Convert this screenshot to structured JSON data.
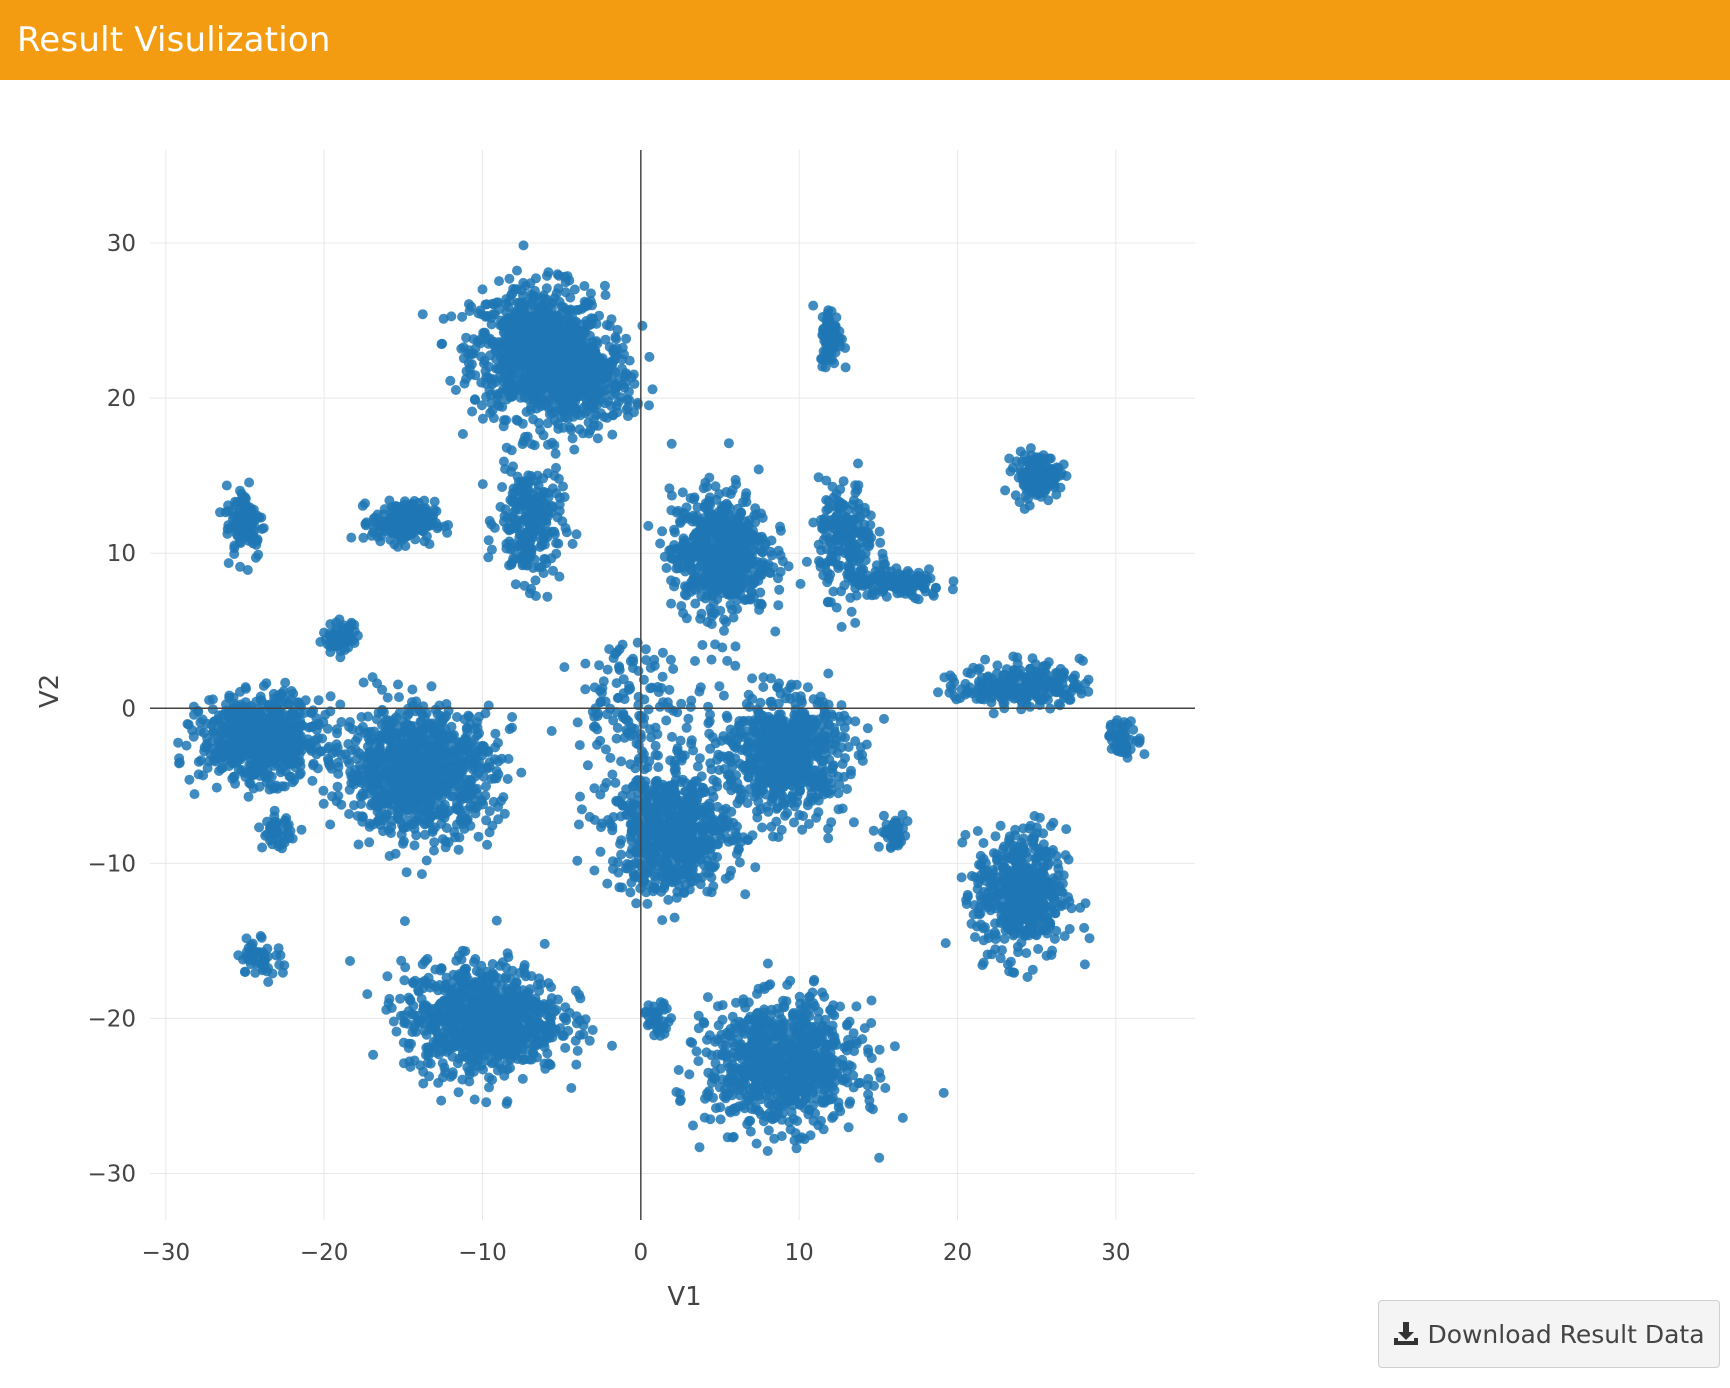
{
  "header": {
    "title": "Result Visulization"
  },
  "download_button": {
    "label": "Download Result Data",
    "icon": "download-icon"
  },
  "colors": {
    "header": "#f39c12",
    "points": "#1f77b4",
    "grid": "#e8e8e8",
    "zeroline": "#444444"
  },
  "chart_data": {
    "type": "scatter",
    "title": "",
    "xlabel": "V1",
    "ylabel": "V2",
    "xlim": [
      -31,
      35
    ],
    "ylim": [
      -33,
      36
    ],
    "xticks": [
      -30,
      -20,
      -10,
      0,
      10,
      20,
      30
    ],
    "yticks": [
      -30,
      -20,
      -10,
      0,
      10,
      20,
      30
    ],
    "xtick_labels": [
      "−30",
      "−20",
      "−10",
      "0",
      "10",
      "20",
      "30"
    ],
    "ytick_labels": [
      "−30",
      "−20",
      "−10",
      "0",
      "10",
      "20",
      "30"
    ],
    "grid": true,
    "zerolines": true,
    "legend": "none",
    "series": [
      {
        "color": "#1f77b4",
        "clusters": [
          {
            "center": [
              -6.5,
              23
            ],
            "spread": [
              3.8,
              3.8
            ],
            "approx_points": 900
          },
          {
            "center": [
              -3.5,
              21
            ],
            "spread": [
              2.8,
              2.5
            ],
            "approx_points": 300
          },
          {
            "center": [
              -7,
              12
            ],
            "spread": [
              1.8,
              3.5
            ],
            "approx_points": 250
          },
          {
            "center": [
              -15,
              12
            ],
            "spread": [
              1.8,
              1.2
            ],
            "approx_points": 220
          },
          {
            "center": [
              -25,
              12
            ],
            "spread": [
              1.1,
              2.2
            ],
            "approx_points": 100
          },
          {
            "center": [
              12,
              24
            ],
            "spread": [
              0.6,
              1.7
            ],
            "approx_points": 90
          },
          {
            "center": [
              25,
              15
            ],
            "spread": [
              1.3,
              1.3
            ],
            "approx_points": 150
          },
          {
            "center": [
              5,
              10
            ],
            "spread": [
              2.8,
              3.6
            ],
            "approx_points": 600
          },
          {
            "center": [
              13,
              11
            ],
            "spread": [
              1.6,
              3.2
            ],
            "approx_points": 200
          },
          {
            "center": [
              16,
              8
            ],
            "spread": [
              3.0,
              0.9
            ],
            "approx_points": 150
          },
          {
            "center": [
              -24,
              -2
            ],
            "spread": [
              3.4,
              2.4
            ],
            "approx_points": 700
          },
          {
            "center": [
              -14,
              -4
            ],
            "spread": [
              4.3,
              3.6
            ],
            "approx_points": 1000
          },
          {
            "center": [
              -19,
              4.5
            ],
            "spread": [
              1.0,
              0.9
            ],
            "approx_points": 60
          },
          {
            "center": [
              -23,
              -8
            ],
            "spread": [
              0.8,
              0.9
            ],
            "approx_points": 50
          },
          {
            "center": [
              2,
              -8
            ],
            "spread": [
              3.5,
              3.5
            ],
            "approx_points": 700
          },
          {
            "center": [
              9,
              -3
            ],
            "spread": [
              3.5,
              3.5
            ],
            "approx_points": 700
          },
          {
            "center": [
              24,
              1.5
            ],
            "spread": [
              3.5,
              1.3
            ],
            "approx_points": 250
          },
          {
            "center": [
              30.5,
              -2
            ],
            "spread": [
              1.0,
              1.0
            ],
            "approx_points": 60
          },
          {
            "center": [
              16,
              -8
            ],
            "spread": [
              0.8,
              1.0
            ],
            "approx_points": 50
          },
          {
            "center": [
              24,
              -12
            ],
            "spread": [
              2.6,
              3.8
            ],
            "approx_points": 500
          },
          {
            "center": [
              -10,
              -20
            ],
            "spread": [
              4.5,
              3.2
            ],
            "approx_points": 900
          },
          {
            "center": [
              9,
              -23
            ],
            "spread": [
              4.3,
              3.6
            ],
            "approx_points": 900
          },
          {
            "center": [
              1,
              -20
            ],
            "spread": [
              0.8,
              0.9
            ],
            "approx_points": 40
          },
          {
            "center": [
              0,
              0
            ],
            "spread": [
              4,
              4
            ],
            "approx_points": 150
          },
          {
            "center": [
              -24,
              -16
            ],
            "spread": [
              1.2,
              1.2
            ],
            "approx_points": 50
          }
        ]
      }
    ]
  }
}
